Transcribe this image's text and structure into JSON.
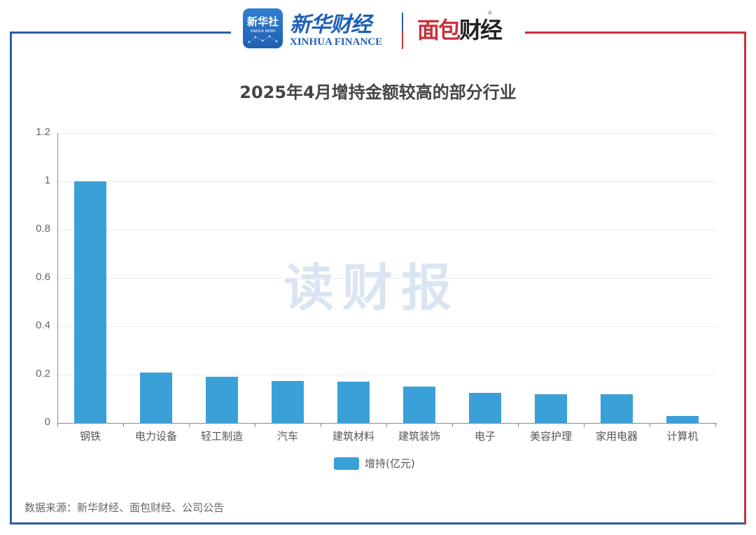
{
  "header": {
    "logo_xinhua_app": {
      "cn": "新华社",
      "en": "XINHUA NEWS"
    },
    "logo_xinhua_finance": {
      "cn": "新华财经",
      "en": "XINHUA FINANCE"
    },
    "logo_mianbao": {
      "part1": "面包",
      "part2": "财经",
      "mark": "®"
    }
  },
  "colors": {
    "bar": "#3aa0d8",
    "frame_left": "#2a5ea8",
    "frame_right": "#c8323c"
  },
  "watermark": "读财报",
  "source": "数据来源：新华财经、面包财经、公司公告",
  "chart_data": {
    "type": "bar",
    "title": "2025年4月增持金额较高的部分行业",
    "xlabel": "",
    "ylabel": "",
    "ylim": [
      0,
      1.2
    ],
    "yticks": [
      "0",
      "0.2",
      "0.4",
      "0.6",
      "0.8",
      "1",
      "1.2"
    ],
    "categories": [
      "钢铁",
      "电力设备",
      "轻工制造",
      "汽车",
      "建筑材料",
      "建筑装饰",
      "电子",
      "美容护理",
      "家用电器",
      "计算机"
    ],
    "series": [
      {
        "name": "增持(亿元)",
        "values": [
          1.0,
          0.21,
          0.19,
          0.175,
          0.17,
          0.15,
          0.125,
          0.12,
          0.12,
          0.03
        ]
      }
    ],
    "legend": {
      "position": "bottom",
      "entries": [
        "增持(亿元)"
      ]
    },
    "grid": true
  }
}
